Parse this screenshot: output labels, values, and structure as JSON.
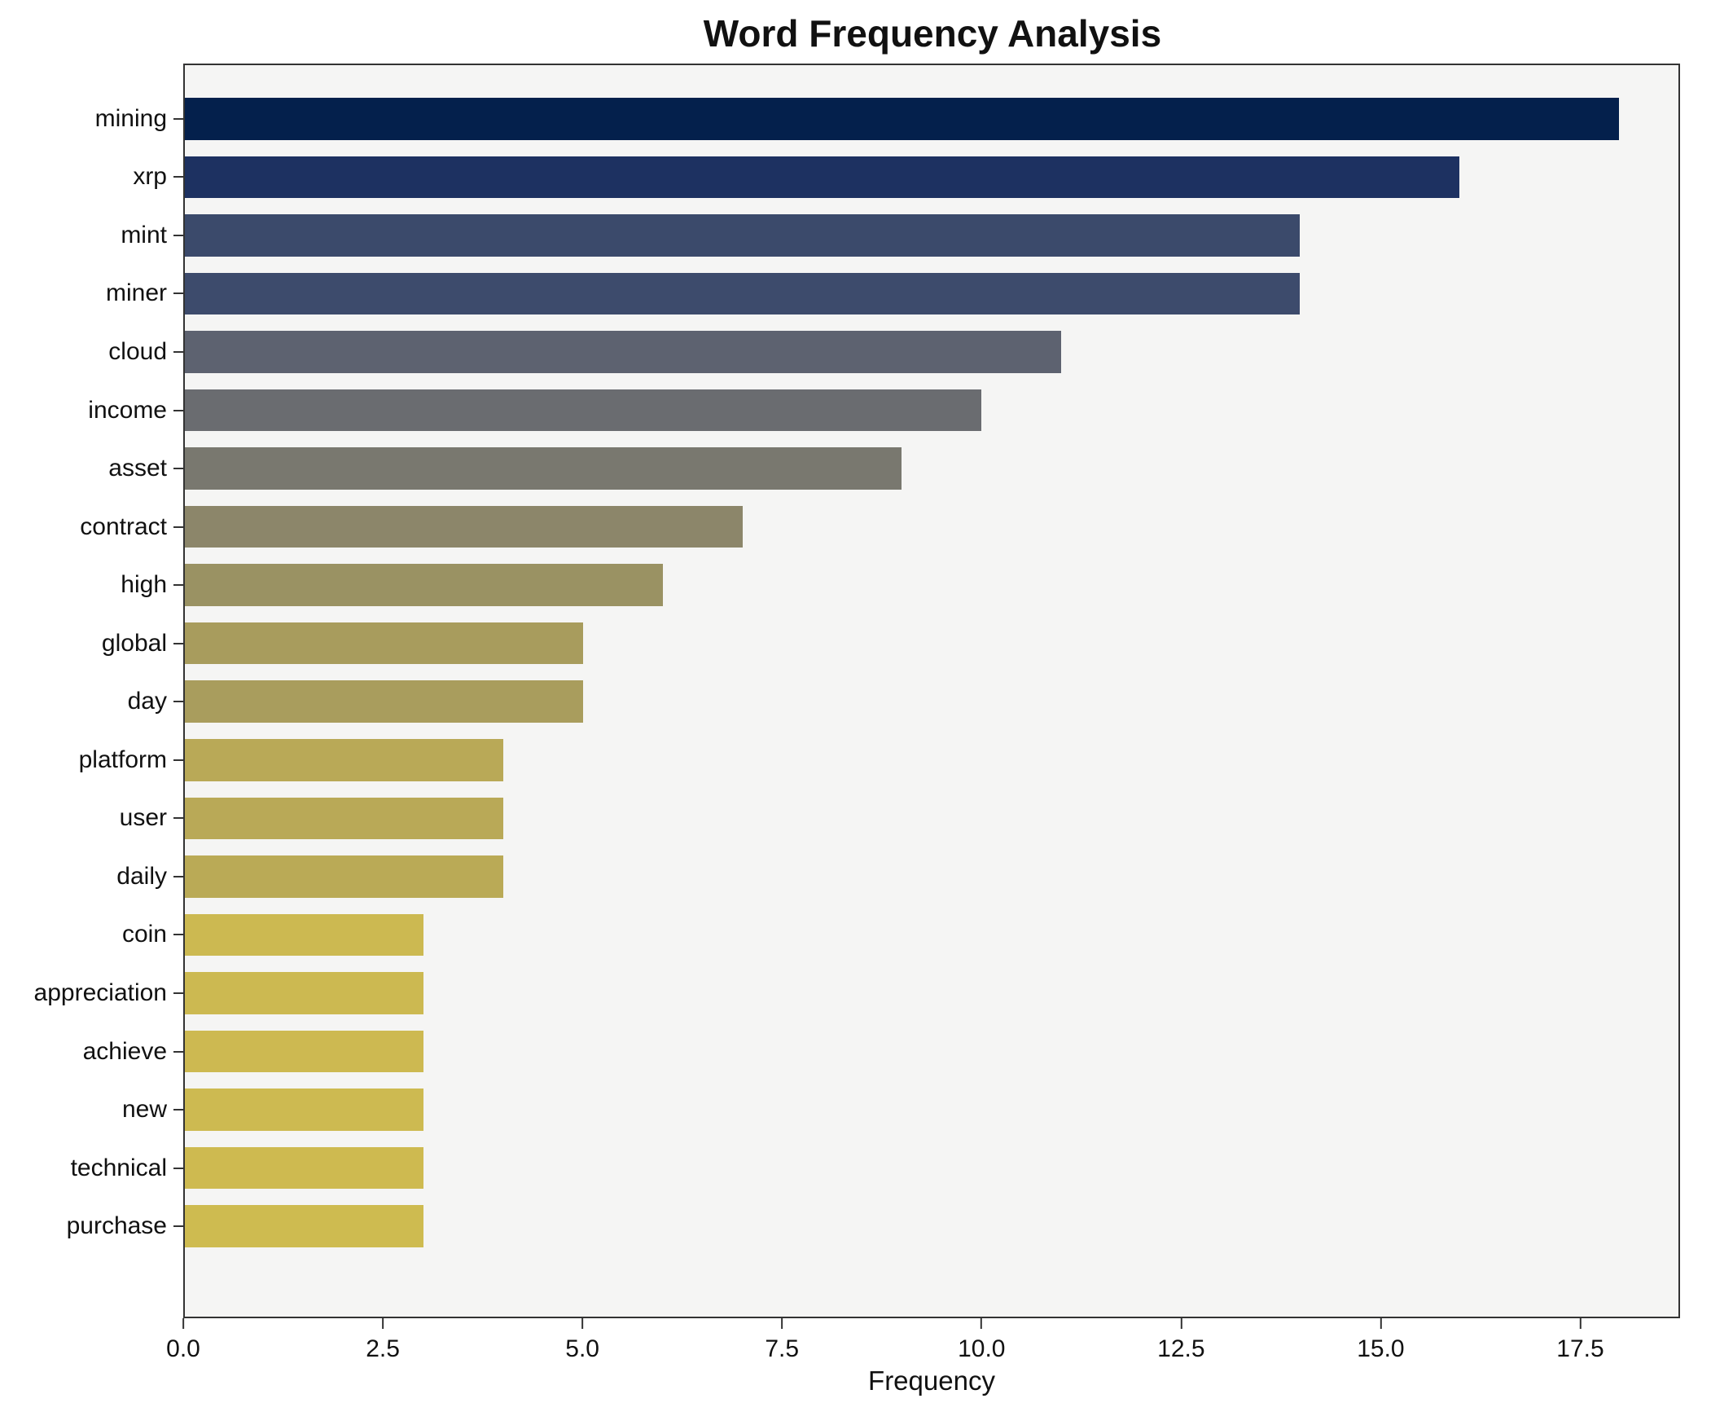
{
  "title": "Word Frequency Analysis",
  "chart_data": {
    "type": "bar",
    "orientation": "horizontal",
    "title": "Word Frequency Analysis",
    "xlabel": "Frequency",
    "ylabel": "",
    "xlim": [
      0,
      18.75
    ],
    "grid": false,
    "legend": "none",
    "plot_background": "#f5f5f4",
    "categories": [
      "mining",
      "xrp",
      "mint",
      "miner",
      "cloud",
      "income",
      "asset",
      "contract",
      "high",
      "global",
      "day",
      "platform",
      "user",
      "daily",
      "coin",
      "appreciation",
      "achieve",
      "new",
      "technical",
      "purchase"
    ],
    "values": [
      18,
      16,
      14,
      14,
      11,
      10,
      9,
      7,
      6,
      5,
      5,
      4,
      4,
      4,
      3,
      3,
      3,
      3,
      3,
      3
    ],
    "bar_colors": [
      "#04204c",
      "#1d3161",
      "#3b4a6b",
      "#3d4b6c",
      "#5d6270",
      "#6a6c70",
      "#79786f",
      "#8c866a",
      "#9a9263",
      "#a89c5d",
      "#a99d5d",
      "#b9a957",
      "#b9a957",
      "#baaa56",
      "#ccb951",
      "#ccb951",
      "#cdb951",
      "#cdba51",
      "#ceba50",
      "#cebb50"
    ],
    "xticks": [
      "0.0",
      "2.5",
      "5.0",
      "7.5",
      "10.0",
      "12.5",
      "15.0",
      "17.5"
    ],
    "xtick_values": [
      0,
      2.5,
      5,
      7.5,
      10,
      12.5,
      15,
      17.5
    ]
  }
}
